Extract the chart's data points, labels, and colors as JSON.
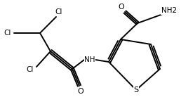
{
  "bg_color": "#ffffff",
  "line_color": "#000000",
  "line_width": 1.4,
  "font_size": 7.5,
  "figsize": [
    2.58,
    1.55
  ],
  "dpi": 100,
  "xlim": [
    0,
    258
  ],
  "ylim": [
    0,
    155
  ],
  "atoms": {
    "Cl1": "Cl",
    "Cl2": "Cl",
    "Cl3": "Cl",
    "O1": "O",
    "O2": "O",
    "NH": "NH",
    "NH2": "NH2",
    "S": "S"
  }
}
